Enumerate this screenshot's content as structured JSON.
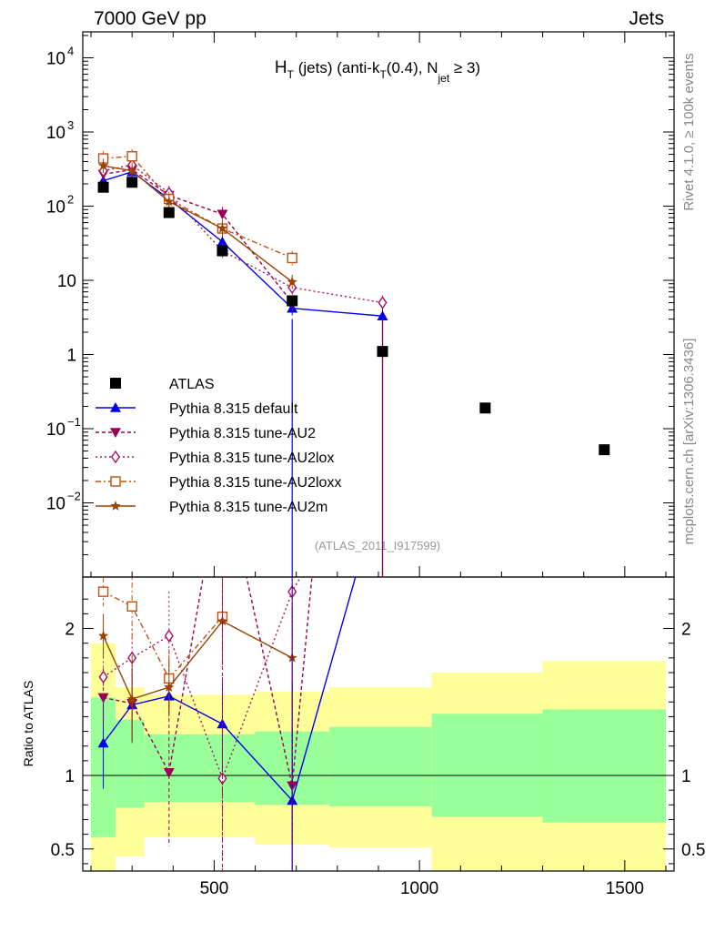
{
  "header": {
    "left": "7000 GeV pp",
    "right": "Jets"
  },
  "side_labels": {
    "rivet": "Rivet 4.1.0, ≥ 100k events",
    "mcplots": "mcplots.cern.ch [arXiv:1306.3436]"
  },
  "chart_data": {
    "type": "scatter",
    "title_parts": {
      "h": "H",
      "t_sub": "T",
      "mid": " (jets) (anti-k",
      "t_sub2": "T",
      "mid2": "(0.4), N",
      "jet_sub": "jet",
      "end": " ≥ 3)"
    },
    "analysis_label": "(ATLAS_2011_I917599)",
    "ylabel_ratio": "Ratio to ATLAS",
    "xlim": [
      180,
      1620
    ],
    "ylim_main_log10": [
      -3.0,
      4.35
    ],
    "ylim_ratio": [
      0.35,
      2.35
    ],
    "x_ticks": [
      500,
      1000,
      1500
    ],
    "x_tick_labels": [
      "500",
      "1000",
      "1500"
    ],
    "y_main_ticks": [
      {
        "v": 4,
        "label": "10",
        "exp": "4"
      },
      {
        "v": 3,
        "label": "10",
        "exp": "3"
      },
      {
        "v": 2,
        "label": "10",
        "exp": "2"
      },
      {
        "v": 1,
        "label": "10",
        "exp": ""
      },
      {
        "v": 0,
        "label": "1",
        "exp": ""
      },
      {
        "v": -1,
        "label": "10",
        "exp": "−1"
      },
      {
        "v": -2,
        "label": "10",
        "exp": "−2"
      }
    ],
    "y_ratio_ticks": [
      {
        "v": 2,
        "label": "2"
      },
      {
        "v": 1,
        "label": "1"
      },
      {
        "v": 0.5,
        "label": "0.5"
      }
    ],
    "data": {
      "name": "ATLAS",
      "x": [
        230,
        300,
        390,
        520,
        690,
        910,
        1160,
        1450
      ],
      "y": [
        180,
        210,
        82,
        25,
        5.3,
        1.1,
        0.19,
        0.052
      ]
    },
    "bands": {
      "edges": [
        200,
        260,
        330,
        600,
        780,
        1030,
        1300,
        1600
      ],
      "green_lo": [
        0.58,
        0.78,
        0.82,
        0.8,
        0.79,
        0.72,
        0.68
      ],
      "green_hi": [
        1.53,
        1.38,
        1.28,
        1.3,
        1.33,
        1.42,
        1.45
      ],
      "yellow_lo": [
        0.35,
        0.45,
        0.58,
        0.53,
        0.51,
        0.35,
        0.35
      ],
      "yellow_hi": [
        1.9,
        1.6,
        1.55,
        1.57,
        1.6,
        1.7,
        1.78
      ]
    },
    "series": [
      {
        "name": "Pythia 8.315 default",
        "color": "#0000ee",
        "dash": "",
        "marker": "triangle-up",
        "x": [
          230,
          300,
          390,
          520,
          690,
          910
        ],
        "y": [
          220,
          290,
          125,
          33,
          4.2,
          3.3
        ],
        "ratio_x": [
          230,
          300,
          390,
          520,
          690,
          910
        ],
        "ratio": [
          1.22,
          1.48,
          1.54,
          1.35,
          0.83,
          3.0
        ],
        "ratio_err": [
          0.31,
          0.25,
          0.12,
          0.3,
          0.8,
          0
        ]
      },
      {
        "name": "Pythia 8.315 tune-AU2",
        "color": "#990055",
        "dash": "4,3",
        "marker": "triangle-down",
        "x": [
          230,
          300,
          390,
          520,
          690
        ],
        "y": [
          270,
          310,
          140,
          78,
          5.0
        ],
        "ratio_x": [
          230,
          300,
          390,
          520,
          690,
          760
        ],
        "ratio": [
          1.53,
          1.49,
          1.02,
          3.1,
          0.93,
          3.0
        ],
        "ratio_err": [
          0.2,
          0.2,
          0.5,
          0,
          0.4,
          0
        ]
      },
      {
        "name": "Pythia 8.315 tune-AU2lox",
        "color": "#aa1166",
        "dash": "2,3",
        "marker": "diamond",
        "x": [
          230,
          300,
          390,
          520,
          690,
          910
        ],
        "y": [
          300,
          360,
          150,
          25,
          8.0,
          5.0
        ],
        "ratio_x": [
          230,
          300,
          390,
          520,
          690,
          760
        ],
        "ratio": [
          1.67,
          1.8,
          1.95,
          0.98,
          2.25,
          2.6
        ],
        "ratio_err": [
          0.2,
          0.2,
          0.3,
          0.4,
          0.3,
          0
        ]
      },
      {
        "name": "Pythia 8.315 tune-AU2loxx",
        "color": "#c05010",
        "dash": "6,3,2,3",
        "marker": "square-open",
        "x": [
          230,
          300,
          390,
          520,
          690
        ],
        "y": [
          440,
          470,
          125,
          50,
          20
        ],
        "ratio_x": [
          230,
          300,
          390,
          520
        ],
        "ratio": [
          2.25,
          2.15,
          1.66,
          2.08
        ],
        "ratio_err": [
          0.1,
          0.25,
          0.2,
          0.2
        ]
      },
      {
        "name": "Pythia 8.315 tune-AU2m",
        "color": "#994400",
        "dash": "",
        "marker": "star",
        "x": [
          230,
          300,
          390,
          520,
          690
        ],
        "y": [
          350,
          300,
          115,
          50,
          9.5
        ],
        "ratio_x": [
          230,
          300,
          390,
          520,
          690
        ],
        "ratio": [
          1.95,
          1.52,
          1.6,
          2.05,
          1.8
        ],
        "ratio_err": [
          0.15,
          0.3,
          0.2,
          0.3,
          0.35
        ]
      }
    ]
  }
}
